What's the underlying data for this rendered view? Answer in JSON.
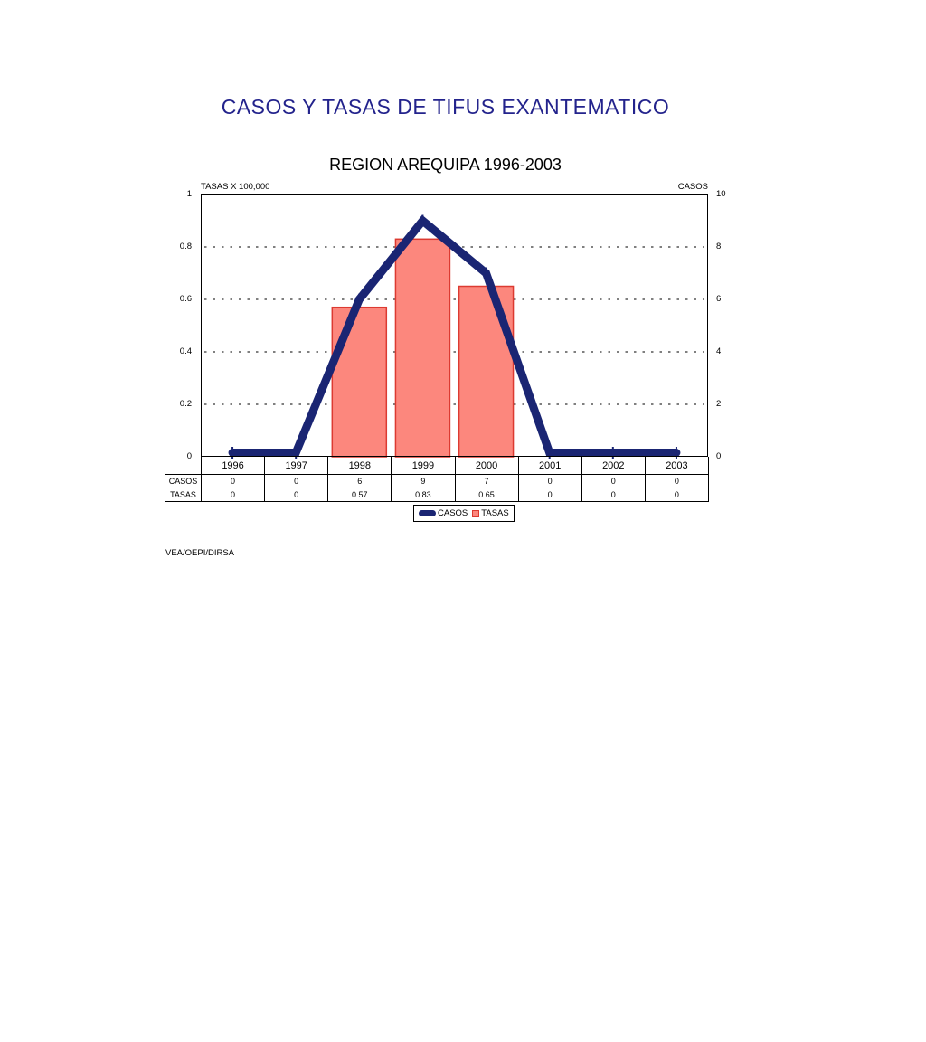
{
  "page": {
    "title": "CASOS Y TASAS DE TIFUS EXANTEMATICO",
    "subtitle": "REGION AREQUIPA 1996-2003",
    "footer": "VEA/OEPI/DIRSA"
  },
  "chart_data": {
    "type": "combo-bar-line",
    "title": "CASOS Y TASAS DE TIFUS EXANTEMATICO",
    "subtitle": "REGION AREQUIPA 1996-2003",
    "categories": [
      "1996",
      "1997",
      "1998",
      "1999",
      "2000",
      "2001",
      "2002",
      "2003"
    ],
    "series": [
      {
        "name": "CASOS",
        "kind": "line",
        "axis": "right",
        "values": [
          0,
          0,
          6,
          9,
          7,
          0,
          0,
          0
        ],
        "color": "#1A2573"
      },
      {
        "name": "TASAS",
        "kind": "bar",
        "axis": "left",
        "values": [
          0,
          0,
          0.57,
          0.83,
          0.65,
          0,
          0,
          0
        ],
        "fill": "#FC877D",
        "stroke": "#DC3A31"
      }
    ],
    "left_axis": {
      "label": "TASAS X 100,000",
      "min": 0,
      "max": 1,
      "tick_labels": [
        "1",
        "0.8",
        "0.6",
        "0.4",
        "0.2",
        "0"
      ],
      "tick_values": [
        1,
        0.8,
        0.6,
        0.4,
        0.2,
        0
      ]
    },
    "right_axis": {
      "label": "CASOS",
      "min": 0,
      "max": 10,
      "tick_labels": [
        "10",
        "8",
        "6",
        "4",
        "2",
        "0"
      ],
      "tick_values": [
        10,
        8,
        6,
        4,
        2,
        0
      ]
    },
    "grid": {
      "horizontal": true,
      "style": "dashed",
      "at_left_values": [
        0.8,
        0.6,
        0.4,
        0.2
      ]
    },
    "legend": {
      "position": "bottom",
      "entries": [
        "CASOS",
        "TASAS"
      ]
    }
  },
  "table": {
    "columns": [
      "1996",
      "1997",
      "1998",
      "1999",
      "2000",
      "2001",
      "2002",
      "2003"
    ],
    "rows": [
      {
        "header": "CASOS",
        "values": [
          "0",
          "0",
          "6",
          "9",
          "7",
          "0",
          "0",
          "0"
        ]
      },
      {
        "header": "TASAS",
        "values": [
          "0",
          "0",
          "0.57",
          "0.83",
          "0.65",
          "0",
          "0",
          "0"
        ]
      }
    ]
  }
}
